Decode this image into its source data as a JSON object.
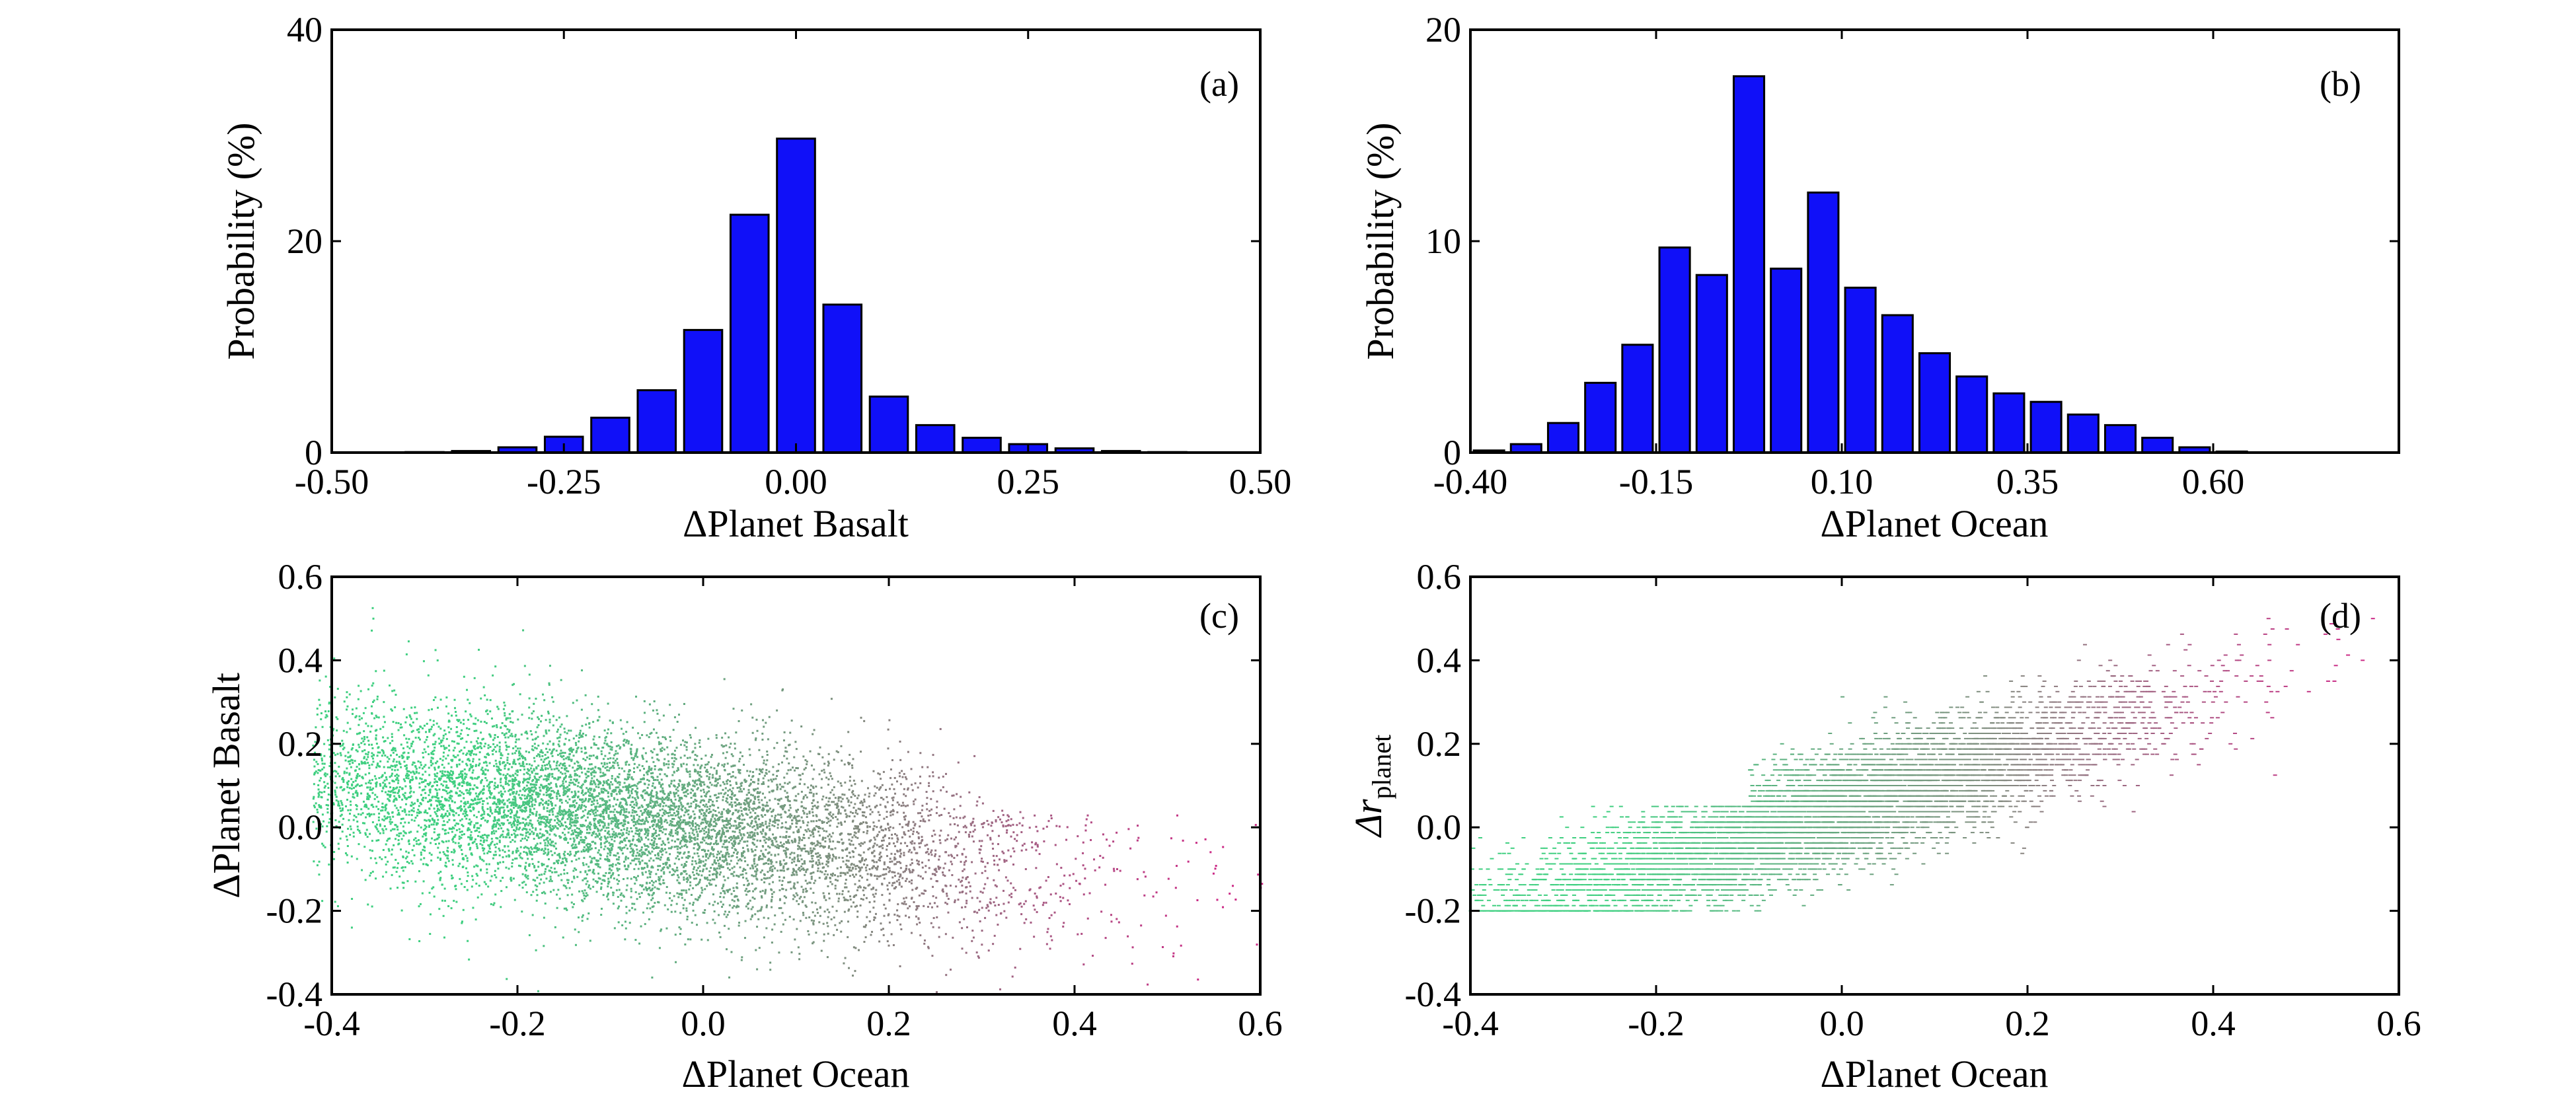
{
  "chart_data": [
    {
      "panel": "(a)",
      "type": "bar",
      "xlabel": "ΔPlanet Basalt",
      "ylabel": "Probability (%)",
      "xlim": [
        -0.5,
        0.5
      ],
      "ylim": [
        0,
        40
      ],
      "xticks": [
        "-0.50",
        "-0.25",
        "0.00",
        "0.25",
        "0.50"
      ],
      "yticks": [
        "0",
        "20",
        "40"
      ],
      "bar_color": "#1010f8",
      "bar_width": 0.05,
      "x": [
        -0.45,
        -0.4,
        -0.35,
        -0.3,
        -0.25,
        -0.2,
        -0.15,
        -0.1,
        -0.05,
        0.0,
        0.05,
        0.1,
        0.15,
        0.2,
        0.25,
        0.3,
        0.35,
        0.4,
        0.45
      ],
      "values": [
        0.0,
        0.05,
        0.15,
        0.5,
        1.5,
        3.3,
        5.9,
        11.6,
        22.5,
        29.7,
        14.0,
        5.3,
        2.6,
        1.4,
        0.8,
        0.4,
        0.15,
        0.05,
        0.0
      ]
    },
    {
      "panel": "(b)",
      "type": "bar",
      "xlabel": "ΔPlanet Ocean",
      "ylabel": "Probability (%)",
      "xlim": [
        -0.4,
        0.85
      ],
      "ylim": [
        0,
        20
      ],
      "xticks": [
        "-0.40",
        "-0.15",
        "0.10",
        "0.35",
        "0.60"
      ],
      "yticks": [
        "0",
        "10",
        "20"
      ],
      "bar_color": "#1010f8",
      "bar_width": 0.05,
      "x": [
        -0.375,
        -0.325,
        -0.275,
        -0.225,
        -0.175,
        -0.125,
        -0.075,
        -0.025,
        0.025,
        0.075,
        0.125,
        0.175,
        0.225,
        0.275,
        0.325,
        0.375,
        0.425,
        0.475,
        0.525,
        0.575,
        0.625,
        0.675
      ],
      "values": [
        0.1,
        0.4,
        1.4,
        3.3,
        5.1,
        9.7,
        8.4,
        17.8,
        8.7,
        12.3,
        7.8,
        6.5,
        4.7,
        3.6,
        2.8,
        2.4,
        1.8,
        1.3,
        0.7,
        0.25,
        0.05,
        0.0
      ]
    },
    {
      "panel": "(c)",
      "type": "scatter",
      "xlabel": "ΔPlanet Ocean",
      "ylabel": "ΔPlanet Basalt",
      "xlim": [
        -0.4,
        0.6
      ],
      "ylim": [
        -0.4,
        0.6
      ],
      "xticks": [
        "-0.4",
        "-0.2",
        "0.0",
        "0.2",
        "0.4",
        "0.6"
      ],
      "yticks": [
        "-0.4",
        "-0.2",
        "0.0",
        "0.2",
        "0.4",
        "0.6"
      ],
      "color_low": "#3fcf80",
      "color_mid": "#7f8f7f",
      "color_high": "#cc2a86",
      "description": "dense point cloud, negative trend: mean y ≈ 0.07 at x=-0.2 falling to ≈ -0.17 at x=0.55"
    },
    {
      "panel": "(d)",
      "type": "scatter",
      "xlabel": "ΔPlanet Ocean",
      "ylabel": "Δr_planet",
      "ylabel_main": "Δr",
      "ylabel_sub": "planet",
      "xlim": [
        -0.4,
        0.6
      ],
      "ylim": [
        -0.4,
        0.6
      ],
      "xticks": [
        "-0.4",
        "-0.2",
        "0.0",
        "0.2",
        "0.4",
        "0.6"
      ],
      "yticks": [
        "-0.4",
        "-0.2",
        "0.0",
        "0.2",
        "0.4",
        "0.6"
      ],
      "color_low": "#3fcf80",
      "color_mid": "#7f8f7f",
      "color_high": "#cc2a86",
      "description": "points on discrete horizontal levels every 0.0125 from -0.2 to 0.5, positive trend"
    }
  ]
}
